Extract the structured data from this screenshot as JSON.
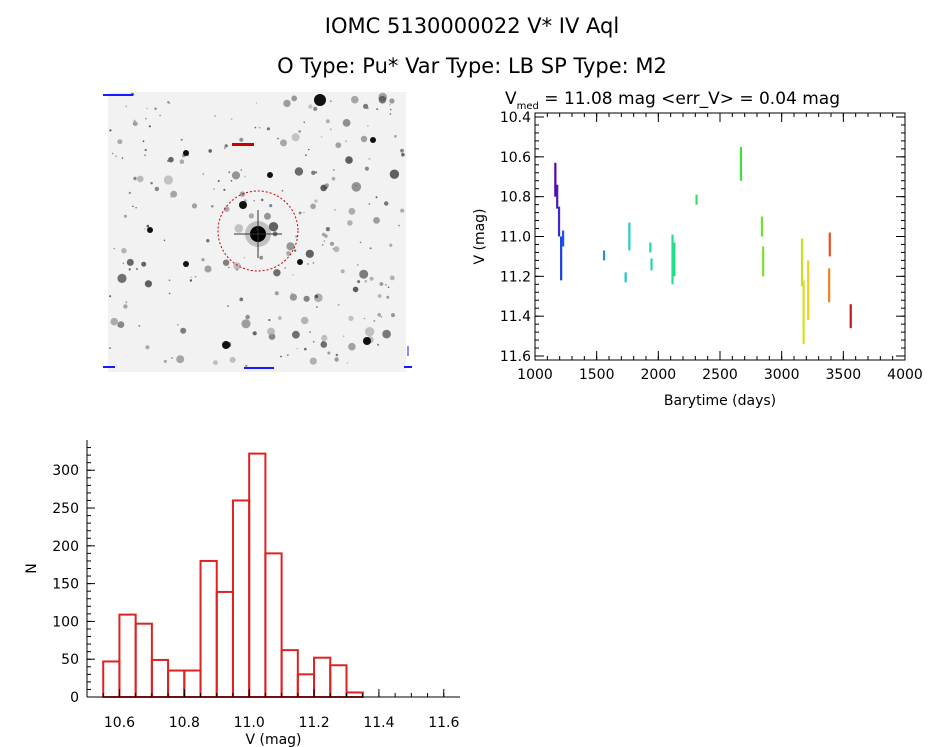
{
  "header": {
    "title_line1": "IOMC 5130000022    V* IV Aql",
    "title_line2": "O Type: Pu*  Var Type: LB  SP Type: M2"
  },
  "image_panel": {
    "kind": "sky-image",
    "marker_color": "#cc0000",
    "label_color": "#1a1aff"
  },
  "lightcurve": {
    "subtitle_prefix": "V",
    "subtitle_sub": "med",
    "subtitle_rest": " = 11.08 mag <err_V> = 0.04 mag"
  },
  "chart_data": [
    {
      "type": "scatter",
      "title": "Vmed = 11.08 mag <err_V> = 0.04 mag",
      "xlabel": "Barytime (days)",
      "ylabel": "V (mag)",
      "xlim": [
        1000,
        4000
      ],
      "ylim": [
        11.62,
        10.38
      ],
      "y_inverted": true,
      "xticks": [
        1000,
        1500,
        2000,
        2500,
        3000,
        3500,
        4000
      ],
      "yticks": [
        10.4,
        10.6,
        10.8,
        11.0,
        11.2,
        11.4,
        11.6
      ],
      "ytick_labels": [
        "10.4",
        "10.6",
        "10.8",
        "11.0",
        "11.2",
        "11.4",
        "11.6"
      ],
      "grid": false,
      "segments": [
        {
          "x": 1165,
          "y0": 10.63,
          "y1": 10.8,
          "color": "#5a00b0"
        },
        {
          "x": 1180,
          "y0": 10.74,
          "y1": 10.86,
          "color": "#4b1ab8"
        },
        {
          "x": 1195,
          "y0": 10.85,
          "y1": 11.0,
          "color": "#3a2ad0"
        },
        {
          "x": 1212,
          "y0": 11.0,
          "y1": 11.22,
          "color": "#1a40e6"
        },
        {
          "x": 1228,
          "y0": 10.97,
          "y1": 11.05,
          "color": "#1a55f0"
        },
        {
          "x": 1560,
          "y0": 11.07,
          "y1": 11.12,
          "color": "#2a8ae0"
        },
        {
          "x": 1735,
          "y0": 11.18,
          "y1": 11.23,
          "color": "#22c4d4"
        },
        {
          "x": 1765,
          "y0": 10.93,
          "y1": 11.07,
          "color": "#22d0c8"
        },
        {
          "x": 1935,
          "y0": 11.03,
          "y1": 11.08,
          "color": "#22d8b0"
        },
        {
          "x": 1945,
          "y0": 11.11,
          "y1": 11.17,
          "color": "#22d8a8"
        },
        {
          "x": 2115,
          "y0": 10.99,
          "y1": 11.24,
          "color": "#22e090"
        },
        {
          "x": 2130,
          "y0": 11.03,
          "y1": 11.2,
          "color": "#22e080"
        },
        {
          "x": 2310,
          "y0": 10.79,
          "y1": 10.84,
          "color": "#30e068"
        },
        {
          "x": 2670,
          "y0": 10.55,
          "y1": 10.72,
          "color": "#40e040"
        },
        {
          "x": 2840,
          "y0": 10.9,
          "y1": 11.0,
          "color": "#6ee030"
        },
        {
          "x": 2850,
          "y0": 11.05,
          "y1": 11.2,
          "color": "#80e030"
        },
        {
          "x": 3165,
          "y0": 11.01,
          "y1": 11.25,
          "color": "#c8e020"
        },
        {
          "x": 3178,
          "y0": 11.22,
          "y1": 11.54,
          "color": "#d8e020"
        },
        {
          "x": 3215,
          "y0": 11.12,
          "y1": 11.42,
          "color": "#f0d020"
        },
        {
          "x": 3385,
          "y0": 11.16,
          "y1": 11.33,
          "color": "#f08020"
        },
        {
          "x": 3390,
          "y0": 10.98,
          "y1": 11.1,
          "color": "#e85020"
        },
        {
          "x": 3560,
          "y0": 11.34,
          "y1": 11.46,
          "color": "#c01818"
        }
      ]
    },
    {
      "type": "histogram",
      "xlabel": "V (mag)",
      "ylabel": "N",
      "xlim": [
        10.5,
        11.65
      ],
      "ylim": [
        0,
        340
      ],
      "xticks": [
        10.6,
        10.8,
        11.0,
        11.2,
        11.4,
        11.6
      ],
      "xtick_labels": [
        "10.6",
        "10.8",
        "11.0",
        "11.2",
        "11.4",
        "11.6"
      ],
      "yticks": [
        0,
        50,
        100,
        150,
        200,
        250,
        300
      ],
      "bar_color": "#dd2222",
      "bin_width": 0.05,
      "bin_starts": [
        10.55,
        10.6,
        10.65,
        10.7,
        10.75,
        10.8,
        10.85,
        10.9,
        10.95,
        11.0,
        11.05,
        11.1,
        11.15,
        11.2,
        11.25,
        11.3,
        11.35,
        11.4,
        11.45
      ],
      "values": [
        47,
        109,
        97,
        49,
        35,
        35,
        180,
        139,
        260,
        322,
        190,
        62,
        30,
        52,
        42,
        6,
        0,
        0,
        0
      ]
    }
  ]
}
